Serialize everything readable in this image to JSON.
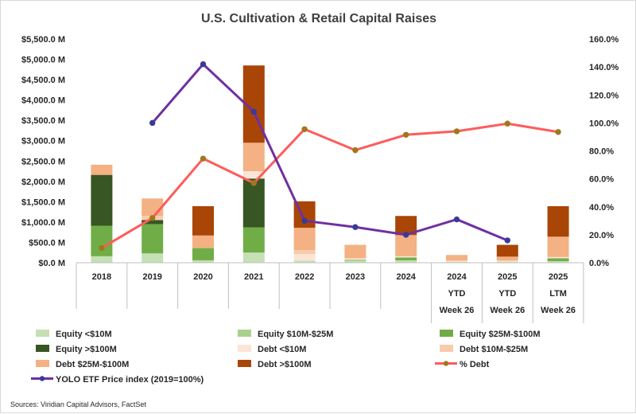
{
  "chart_data": {
    "type": "bar",
    "title": "U.S. Cultivation & Retail Capital Raises",
    "source": "Sources: Viridian Capital Advisors, FactSet",
    "categories": [
      [
        "2018"
      ],
      [
        "2019"
      ],
      [
        "2020"
      ],
      [
        "2021"
      ],
      [
        "2022"
      ],
      [
        "2023"
      ],
      [
        "2024"
      ],
      [
        "2024",
        "YTD",
        "Week 26"
      ],
      [
        "2025",
        "YTD",
        "Week 26"
      ],
      [
        "2025",
        "LTM",
        "Week 26"
      ]
    ],
    "y_left": {
      "min": 0,
      "max": 5500,
      "step": 500,
      "tick_labels": [
        "$0.0 M",
        "$500.0 M",
        "$1,000.0 M",
        "$1,500.0 M",
        "$2,000.0 M",
        "$2,500.0 M",
        "$3,000.0 M",
        "$3,500.0 M",
        "$4,000.0 M",
        "$4,500.0 M",
        "$5,000.0 M",
        "$5,500.0 M"
      ]
    },
    "y_right": {
      "min": 0,
      "max": 160,
      "step": 20,
      "tick_labels": [
        "0.0%",
        "20.0%",
        "40.0%",
        "60.0%",
        "80.0%",
        "100.0%",
        "120.0%",
        "140.0%",
        "160.0%"
      ]
    },
    "stacked_series": [
      {
        "name": "Equity <$10M",
        "color": "#c5e0b4",
        "values": [
          160,
          230,
          60,
          250,
          50,
          40,
          60,
          20,
          20,
          40
        ]
      },
      {
        "name": "Equity $10M-$25M",
        "color": "#a9d18e",
        "values": [
          0,
          0,
          0,
          0,
          0,
          40,
          0,
          0,
          0,
          0
        ]
      },
      {
        "name": "Equity $25M-$100M",
        "color": "#70ad47",
        "values": [
          750,
          720,
          300,
          620,
          0,
          0,
          70,
          0,
          0,
          70
        ]
      },
      {
        "name": "Equity >$100M",
        "color": "#375623",
        "values": [
          1250,
          100,
          0,
          1200,
          0,
          0,
          0,
          0,
          0,
          0
        ]
      },
      {
        "name": "Debt <$10M",
        "color": "#fbe5d6",
        "values": [
          0,
          0,
          0,
          180,
          160,
          30,
          30,
          30,
          30,
          30
        ]
      },
      {
        "name": "Debt $10M-$25M",
        "color": "#f8cbad",
        "values": [
          0,
          100,
          0,
          0,
          100,
          0,
          0,
          0,
          0,
          0
        ]
      },
      {
        "name": "Debt $25M-$100M",
        "color": "#f4b183",
        "values": [
          250,
          430,
          310,
          700,
          550,
          330,
          520,
          140,
          100,
          500
        ]
      },
      {
        "name": "Debt >$100M",
        "color": "#a94506",
        "values": [
          0,
          0,
          720,
          1900,
          650,
          0,
          470,
          0,
          290,
          750
        ]
      }
    ],
    "line_series": [
      {
        "name": "% Debt",
        "color": "#ff5b5b",
        "marker_color": "#a0781c",
        "axis": "right",
        "values": [
          10.5,
          32,
          74.5,
          57,
          95.5,
          80.5,
          91.5,
          94,
          99.5,
          93.5
        ]
      },
      {
        "name": "YOLO ETF Price index (2019=100%)",
        "color": "#7030a0",
        "marker_color": "#3a3a9a",
        "axis": "right",
        "values": [
          null,
          100,
          142,
          108,
          30,
          25.5,
          20,
          31,
          16,
          null
        ]
      }
    ],
    "grid": false,
    "legend_position": "bottom"
  }
}
